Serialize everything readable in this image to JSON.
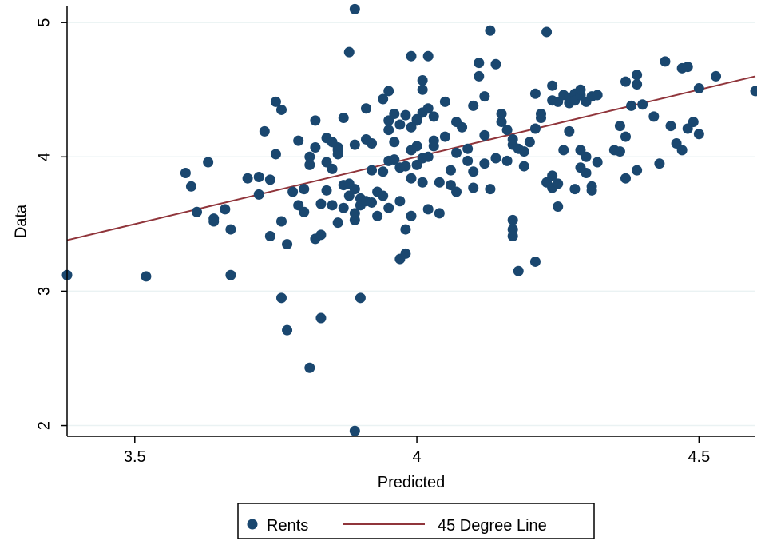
{
  "chart_data": {
    "type": "scatter",
    "xlabel": "Predicted",
    "ylabel": "Data",
    "xlim": [
      3.38,
      4.6
    ],
    "ylim": [
      1.92,
      5.12
    ],
    "xticks": [
      "3.5",
      "4",
      "4.5"
    ],
    "xtick_values": [
      3.5,
      4.0,
      4.5
    ],
    "yticks": [
      "2",
      "3",
      "4",
      "5"
    ],
    "ytick_values": [
      2,
      3,
      4,
      5
    ],
    "grid": "horizontal",
    "legend_position": "bottom",
    "colors": {
      "points": "#1a476f",
      "line": "#90353b",
      "grid": "#eaf2f3",
      "axis": "#000000"
    },
    "series": [
      {
        "name": "Rents",
        "kind": "scatter",
        "points": [
          [
            3.38,
            3.12
          ],
          [
            3.52,
            3.11
          ],
          [
            3.59,
            3.88
          ],
          [
            3.6,
            3.78
          ],
          [
            3.61,
            3.59
          ],
          [
            3.63,
            3.96
          ],
          [
            3.64,
            3.52
          ],
          [
            3.64,
            3.54
          ],
          [
            3.66,
            3.61
          ],
          [
            3.67,
            3.46
          ],
          [
            3.67,
            3.12
          ],
          [
            3.7,
            3.84
          ],
          [
            3.72,
            3.85
          ],
          [
            3.72,
            3.72
          ],
          [
            3.73,
            4.19
          ],
          [
            3.74,
            3.83
          ],
          [
            3.74,
            3.41
          ],
          [
            3.75,
            4.02
          ],
          [
            3.75,
            4.41
          ],
          [
            3.76,
            4.35
          ],
          [
            3.76,
            2.95
          ],
          [
            3.76,
            3.52
          ],
          [
            3.77,
            3.35
          ],
          [
            3.77,
            2.71
          ],
          [
            3.78,
            3.74
          ],
          [
            3.79,
            4.12
          ],
          [
            3.79,
            3.64
          ],
          [
            3.8,
            3.76
          ],
          [
            3.8,
            3.59
          ],
          [
            3.81,
            3.94
          ],
          [
            3.81,
            4.0
          ],
          [
            3.81,
            2.43
          ],
          [
            3.82,
            4.27
          ],
          [
            3.82,
            3.39
          ],
          [
            3.82,
            4.07
          ],
          [
            3.83,
            3.65
          ],
          [
            3.83,
            3.42
          ],
          [
            3.83,
            2.8
          ],
          [
            3.84,
            3.75
          ],
          [
            3.84,
            4.14
          ],
          [
            3.84,
            3.96
          ],
          [
            3.85,
            3.91
          ],
          [
            3.85,
            4.11
          ],
          [
            3.85,
            3.64
          ],
          [
            3.86,
            4.07
          ],
          [
            3.86,
            3.51
          ],
          [
            3.86,
            4.05
          ],
          [
            3.86,
            4.02
          ],
          [
            3.87,
            3.62
          ],
          [
            3.87,
            3.79
          ],
          [
            3.87,
            4.29
          ],
          [
            3.88,
            4.78
          ],
          [
            3.88,
            3.8
          ],
          [
            3.88,
            3.71
          ],
          [
            3.89,
            4.09
          ],
          [
            3.89,
            3.76
          ],
          [
            3.89,
            3.53
          ],
          [
            3.89,
            3.58
          ],
          [
            3.89,
            5.1
          ],
          [
            3.89,
            1.96
          ],
          [
            3.9,
            3.69
          ],
          [
            3.9,
            3.64
          ],
          [
            3.9,
            2.95
          ],
          [
            3.91,
            4.36
          ],
          [
            3.91,
            3.67
          ],
          [
            3.91,
            4.13
          ],
          [
            3.92,
            4.1
          ],
          [
            3.92,
            3.66
          ],
          [
            3.92,
            3.9
          ],
          [
            3.93,
            3.56
          ],
          [
            3.93,
            3.74
          ],
          [
            3.94,
            3.89
          ],
          [
            3.94,
            4.43
          ],
          [
            3.94,
            3.71
          ],
          [
            3.95,
            3.62
          ],
          [
            3.95,
            4.27
          ],
          [
            3.95,
            4.49
          ],
          [
            3.95,
            3.97
          ],
          [
            3.95,
            4.2
          ],
          [
            3.96,
            3.98
          ],
          [
            3.96,
            4.11
          ],
          [
            3.96,
            4.32
          ],
          [
            3.97,
            3.92
          ],
          [
            3.97,
            3.67
          ],
          [
            3.97,
            4.24
          ],
          [
            3.97,
            3.24
          ],
          [
            3.98,
            3.93
          ],
          [
            3.98,
            4.31
          ],
          [
            3.98,
            3.46
          ],
          [
            3.98,
            3.28
          ],
          [
            3.99,
            4.75
          ],
          [
            3.99,
            3.84
          ],
          [
            3.99,
            4.22
          ],
          [
            3.99,
            4.05
          ],
          [
            3.99,
            3.56
          ],
          [
            4.0,
            4.27
          ],
          [
            4.0,
            4.08
          ],
          [
            4.0,
            3.94
          ],
          [
            4.0,
            4.28
          ],
          [
            4.01,
            3.81
          ],
          [
            4.01,
            4.33
          ],
          [
            4.01,
            4.57
          ],
          [
            4.01,
            4.5
          ],
          [
            4.01,
            3.99
          ],
          [
            4.02,
            4.75
          ],
          [
            4.02,
            3.61
          ],
          [
            4.02,
            4.36
          ],
          [
            4.02,
            4.0
          ],
          [
            4.03,
            4.3
          ],
          [
            4.03,
            4.12
          ],
          [
            4.03,
            4.08
          ],
          [
            4.04,
            3.81
          ],
          [
            4.04,
            3.58
          ],
          [
            4.05,
            4.41
          ],
          [
            4.05,
            4.15
          ],
          [
            4.06,
            3.79
          ],
          [
            4.06,
            3.9
          ],
          [
            4.07,
            4.26
          ],
          [
            4.07,
            4.03
          ],
          [
            4.07,
            3.74
          ],
          [
            4.08,
            4.22
          ],
          [
            4.09,
            4.06
          ],
          [
            4.09,
            3.97
          ],
          [
            4.1,
            3.77
          ],
          [
            4.1,
            4.38
          ],
          [
            4.1,
            3.89
          ],
          [
            4.11,
            4.6
          ],
          [
            4.11,
            4.7
          ],
          [
            4.12,
            3.95
          ],
          [
            4.12,
            4.16
          ],
          [
            4.12,
            4.45
          ],
          [
            4.13,
            4.94
          ],
          [
            4.13,
            3.76
          ],
          [
            4.14,
            3.99
          ],
          [
            4.14,
            4.69
          ],
          [
            4.15,
            4.32
          ],
          [
            4.15,
            4.26
          ],
          [
            4.16,
            3.97
          ],
          [
            4.16,
            4.2
          ],
          [
            4.17,
            4.09
          ],
          [
            4.17,
            3.53
          ],
          [
            4.17,
            3.46
          ],
          [
            4.17,
            3.41
          ],
          [
            4.17,
            4.13
          ],
          [
            4.18,
            3.15
          ],
          [
            4.18,
            4.06
          ],
          [
            4.19,
            3.93
          ],
          [
            4.19,
            4.04
          ],
          [
            4.2,
            4.11
          ],
          [
            4.21,
            4.21
          ],
          [
            4.21,
            3.22
          ],
          [
            4.21,
            4.47
          ],
          [
            4.22,
            4.29
          ],
          [
            4.22,
            4.32
          ],
          [
            4.23,
            3.81
          ],
          [
            4.23,
            4.93
          ],
          [
            4.24,
            3.86
          ],
          [
            4.24,
            4.42
          ],
          [
            4.24,
            3.77
          ],
          [
            4.24,
            4.53
          ],
          [
            4.25,
            3.8
          ],
          [
            4.25,
            3.63
          ],
          [
            4.25,
            4.41
          ],
          [
            4.26,
            4.46
          ],
          [
            4.26,
            4.05
          ],
          [
            4.27,
            4.4
          ],
          [
            4.27,
            4.44
          ],
          [
            4.27,
            4.19
          ],
          [
            4.28,
            4.47
          ],
          [
            4.28,
            3.76
          ],
          [
            4.28,
            4.42
          ],
          [
            4.29,
            4.46
          ],
          [
            4.29,
            4.5
          ],
          [
            4.29,
            3.92
          ],
          [
            4.29,
            4.05
          ],
          [
            4.3,
            3.88
          ],
          [
            4.3,
            4.0
          ],
          [
            4.3,
            4.41
          ],
          [
            4.31,
            3.78
          ],
          [
            4.31,
            3.75
          ],
          [
            4.31,
            4.45
          ],
          [
            4.32,
            3.96
          ],
          [
            4.32,
            4.46
          ],
          [
            4.35,
            4.05
          ],
          [
            4.36,
            4.04
          ],
          [
            4.36,
            4.23
          ],
          [
            4.37,
            3.84
          ],
          [
            4.37,
            4.15
          ],
          [
            4.37,
            4.56
          ],
          [
            4.38,
            4.38
          ],
          [
            4.39,
            4.61
          ],
          [
            4.39,
            3.9
          ],
          [
            4.39,
            4.54
          ],
          [
            4.4,
            4.39
          ],
          [
            4.42,
            4.3
          ],
          [
            4.43,
            3.95
          ],
          [
            4.44,
            4.71
          ],
          [
            4.45,
            4.23
          ],
          [
            4.46,
            4.1
          ],
          [
            4.47,
            4.05
          ],
          [
            4.47,
            4.66
          ],
          [
            4.48,
            4.21
          ],
          [
            4.48,
            4.67
          ],
          [
            4.49,
            4.26
          ],
          [
            4.5,
            4.51
          ],
          [
            4.5,
            4.17
          ],
          [
            4.53,
            4.6
          ],
          [
            4.6,
            4.49
          ]
        ]
      },
      {
        "name": "45 Degree Line",
        "kind": "line",
        "x": [
          3.38,
          4.6
        ],
        "y": [
          3.38,
          4.6
        ]
      }
    ]
  }
}
